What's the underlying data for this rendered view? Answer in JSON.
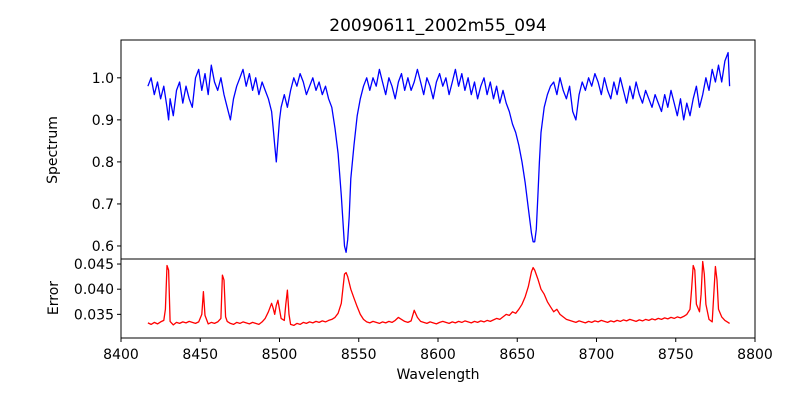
{
  "figure": {
    "title": "20090611_2002m55_094",
    "background_color": "#ffffff",
    "text_color": "#000000",
    "spine_color": "#000000"
  },
  "axes": {
    "xlabel": "Wavelength",
    "xlim": [
      8400,
      8800
    ],
    "xticks": [
      8400,
      8450,
      8500,
      8550,
      8600,
      8650,
      8700,
      8750,
      8800
    ],
    "xtick_labels": [
      "8400",
      "8450",
      "8500",
      "8550",
      "8600",
      "8650",
      "8700",
      "8750",
      "8800"
    ]
  },
  "chart_data": [
    {
      "type": "line",
      "name": "spectrum",
      "ylabel": "Spectrum",
      "line_color": "#0000ff",
      "legend": "none",
      "grid": false,
      "ylim": [
        0.569,
        1.09
      ],
      "yticks": [
        0.6,
        0.7,
        0.8,
        0.9,
        1.0
      ],
      "ytick_labels": [
        "0.6",
        "0.7",
        "0.8",
        "0.9",
        "1.0"
      ],
      "x": [
        8417,
        8419,
        8421,
        8423,
        8425,
        8427,
        8429,
        8430,
        8431,
        8433,
        8435,
        8437,
        8439,
        8441,
        8443,
        8445,
        8447,
        8449,
        8451,
        8453,
        8455,
        8457,
        8459,
        8461,
        8463,
        8465,
        8467,
        8469,
        8471,
        8473,
        8475,
        8477,
        8479,
        8481,
        8483,
        8485,
        8487,
        8489,
        8491,
        8493,
        8495,
        8496,
        8497,
        8498,
        8499,
        8500,
        8501,
        8503,
        8505,
        8507,
        8509,
        8511,
        8513,
        8515,
        8517,
        8519,
        8521,
        8523,
        8525,
        8527,
        8529,
        8531,
        8533,
        8535,
        8537,
        8539,
        8540,
        8541,
        8542,
        8543,
        8544,
        8545,
        8547,
        8549,
        8551,
        8553,
        8555,
        8557,
        8559,
        8561,
        8563,
        8565,
        8567,
        8569,
        8571,
        8573,
        8575,
        8577,
        8579,
        8581,
        8583,
        8585,
        8587,
        8589,
        8591,
        8593,
        8595,
        8597,
        8599,
        8601,
        8603,
        8605,
        8607,
        8609,
        8611,
        8613,
        8615,
        8617,
        8619,
        8621,
        8623,
        8625,
        8627,
        8629,
        8631,
        8633,
        8635,
        8637,
        8639,
        8641,
        8643,
        8645,
        8647,
        8649,
        8651,
        8653,
        8655,
        8657,
        8659,
        8660,
        8661,
        8662,
        8663,
        8664,
        8665,
        8667,
        8669,
        8671,
        8673,
        8675,
        8677,
        8679,
        8681,
        8683,
        8685,
        8687,
        8689,
        8691,
        8693,
        8695,
        8697,
        8699,
        8701,
        8703,
        8705,
        8707,
        8709,
        8711,
        8713,
        8715,
        8717,
        8719,
        8721,
        8723,
        8725,
        8727,
        8729,
        8731,
        8733,
        8735,
        8737,
        8739,
        8741,
        8743,
        8745,
        8747,
        8749,
        8751,
        8753,
        8755,
        8757,
        8759,
        8761,
        8763,
        8765,
        8767,
        8769,
        8771,
        8773,
        8775,
        8777,
        8779,
        8781,
        8783,
        8784
      ],
      "y": [
        0.98,
        1.0,
        0.96,
        0.99,
        0.95,
        0.98,
        0.93,
        0.9,
        0.95,
        0.91,
        0.97,
        0.99,
        0.94,
        0.98,
        0.95,
        0.93,
        1.0,
        1.02,
        0.97,
        1.01,
        0.96,
        1.03,
        0.99,
        0.97,
        1.0,
        0.96,
        0.93,
        0.9,
        0.95,
        0.98,
        1.0,
        1.02,
        0.98,
        1.01,
        0.97,
        1.0,
        0.96,
        0.99,
        0.97,
        0.95,
        0.92,
        0.88,
        0.84,
        0.8,
        0.85,
        0.9,
        0.93,
        0.96,
        0.93,
        0.97,
        1.0,
        0.98,
        1.01,
        0.99,
        0.96,
        0.98,
        1.0,
        0.97,
        0.99,
        0.96,
        0.98,
        0.95,
        0.93,
        0.88,
        0.82,
        0.72,
        0.66,
        0.6,
        0.585,
        0.615,
        0.67,
        0.76,
        0.84,
        0.91,
        0.95,
        0.98,
        1.0,
        0.97,
        1.0,
        0.98,
        1.02,
        0.99,
        0.96,
        1.0,
        0.98,
        0.95,
        0.99,
        1.01,
        0.97,
        1.0,
        0.97,
        0.99,
        1.02,
        0.99,
        0.96,
        1.0,
        0.98,
        0.95,
        0.99,
        1.01,
        0.98,
        1.0,
        0.96,
        0.99,
        1.02,
        0.98,
        1.01,
        0.97,
        1.0,
        0.96,
        0.99,
        0.95,
        0.98,
        1.0,
        0.96,
        0.99,
        0.95,
        0.98,
        0.94,
        0.97,
        0.94,
        0.92,
        0.89,
        0.87,
        0.84,
        0.8,
        0.75,
        0.69,
        0.63,
        0.61,
        0.61,
        0.64,
        0.72,
        0.8,
        0.87,
        0.93,
        0.96,
        0.98,
        0.99,
        0.96,
        1.0,
        0.97,
        0.95,
        0.98,
        0.92,
        0.9,
        0.96,
        0.99,
        0.97,
        1.0,
        0.98,
        1.01,
        0.99,
        0.96,
        1.0,
        0.97,
        0.95,
        0.99,
        0.96,
        1.0,
        0.97,
        0.94,
        0.98,
        0.95,
        0.99,
        0.96,
        0.94,
        0.97,
        0.95,
        0.93,
        0.96,
        0.94,
        0.92,
        0.96,
        0.93,
        0.97,
        0.94,
        0.91,
        0.95,
        0.9,
        0.94,
        0.91,
        0.95,
        0.98,
        0.93,
        0.96,
        1.0,
        0.97,
        1.02,
        0.99,
        1.03,
        0.99,
        1.04,
        1.06,
        0.98
      ]
    },
    {
      "type": "line",
      "name": "error",
      "ylabel": "Error",
      "line_color": "#ff0000",
      "legend": "none",
      "grid": false,
      "ylim": [
        0.0303,
        0.046
      ],
      "yticks": [
        0.035,
        0.04,
        0.045
      ],
      "ytick_labels": [
        "0.035",
        "0.040",
        "0.045"
      ],
      "x": [
        8417,
        8419,
        8421,
        8423,
        8425,
        8427,
        8428,
        8429,
        8430,
        8431,
        8433,
        8435,
        8437,
        8439,
        8441,
        8443,
        8445,
        8447,
        8449,
        8451,
        8452,
        8453,
        8455,
        8457,
        8459,
        8461,
        8463,
        8464,
        8465,
        8466,
        8467,
        8469,
        8471,
        8473,
        8475,
        8477,
        8479,
        8481,
        8483,
        8485,
        8487,
        8489,
        8491,
        8493,
        8495,
        8496,
        8497,
        8498,
        8499,
        8501,
        8503,
        8504,
        8505,
        8506,
        8507,
        8509,
        8511,
        8513,
        8515,
        8517,
        8519,
        8521,
        8523,
        8525,
        8527,
        8529,
        8531,
        8533,
        8535,
        8537,
        8539,
        8541,
        8542,
        8543,
        8545,
        8547,
        8549,
        8551,
        8553,
        8555,
        8557,
        8559,
        8561,
        8563,
        8565,
        8567,
        8569,
        8571,
        8573,
        8575,
        8577,
        8579,
        8581,
        8583,
        8585,
        8587,
        8589,
        8591,
        8593,
        8595,
        8597,
        8599,
        8601,
        8603,
        8605,
        8607,
        8609,
        8611,
        8613,
        8615,
        8617,
        8619,
        8621,
        8623,
        8625,
        8627,
        8629,
        8631,
        8633,
        8635,
        8637,
        8639,
        8641,
        8643,
        8645,
        8647,
        8649,
        8651,
        8653,
        8655,
        8657,
        8659,
        8660,
        8661,
        8663,
        8665,
        8667,
        8669,
        8671,
        8673,
        8675,
        8677,
        8679,
        8681,
        8683,
        8685,
        8687,
        8689,
        8691,
        8693,
        8695,
        8697,
        8699,
        8701,
        8703,
        8705,
        8707,
        8709,
        8711,
        8713,
        8715,
        8717,
        8719,
        8721,
        8723,
        8725,
        8727,
        8729,
        8731,
        8733,
        8735,
        8737,
        8739,
        8741,
        8743,
        8745,
        8747,
        8749,
        8751,
        8753,
        8755,
        8757,
        8759,
        8760,
        8761,
        8762,
        8763,
        8765,
        8766,
        8767,
        8768,
        8769,
        8771,
        8773,
        8774,
        8775,
        8776,
        8777,
        8779,
        8781,
        8783,
        8784
      ],
      "y": [
        0.0333,
        0.033,
        0.0334,
        0.0331,
        0.0335,
        0.0338,
        0.036,
        0.0447,
        0.0438,
        0.0336,
        0.0329,
        0.0334,
        0.0332,
        0.0335,
        0.0333,
        0.0336,
        0.0334,
        0.0332,
        0.0335,
        0.035,
        0.0395,
        0.0348,
        0.0331,
        0.0334,
        0.0332,
        0.0335,
        0.0342,
        0.0428,
        0.0418,
        0.0345,
        0.0336,
        0.0332,
        0.033,
        0.0334,
        0.0332,
        0.0335,
        0.0333,
        0.0331,
        0.0334,
        0.0332,
        0.033,
        0.0335,
        0.0342,
        0.0355,
        0.0372,
        0.0362,
        0.035,
        0.0368,
        0.0378,
        0.0342,
        0.0338,
        0.037,
        0.0398,
        0.035,
        0.033,
        0.0328,
        0.0332,
        0.033,
        0.0334,
        0.0332,
        0.0335,
        0.0333,
        0.0336,
        0.0334,
        0.0337,
        0.0335,
        0.0338,
        0.034,
        0.0344,
        0.0352,
        0.0372,
        0.043,
        0.0433,
        0.0425,
        0.04,
        0.0382,
        0.0365,
        0.035,
        0.034,
        0.0335,
        0.0333,
        0.0336,
        0.0334,
        0.0332,
        0.0335,
        0.0333,
        0.0336,
        0.0334,
        0.0338,
        0.0344,
        0.034,
        0.0336,
        0.0334,
        0.0337,
        0.0358,
        0.0344,
        0.0336,
        0.0334,
        0.0332,
        0.0335,
        0.0333,
        0.0331,
        0.0334,
        0.0336,
        0.0334,
        0.0332,
        0.0335,
        0.0333,
        0.0336,
        0.0334,
        0.0337,
        0.0335,
        0.0333,
        0.0336,
        0.0334,
        0.0337,
        0.0335,
        0.0338,
        0.0336,
        0.0339,
        0.0342,
        0.034,
        0.0345,
        0.035,
        0.0348,
        0.0355,
        0.0352,
        0.036,
        0.037,
        0.0385,
        0.0405,
        0.0435,
        0.0443,
        0.0438,
        0.042,
        0.04,
        0.039,
        0.0375,
        0.0365,
        0.0355,
        0.036,
        0.035,
        0.0345,
        0.034,
        0.0338,
        0.0336,
        0.0334,
        0.0337,
        0.0335,
        0.0333,
        0.0336,
        0.0334,
        0.0337,
        0.0335,
        0.0338,
        0.0336,
        0.0334,
        0.0337,
        0.0335,
        0.0338,
        0.0336,
        0.0339,
        0.0337,
        0.034,
        0.0338,
        0.0336,
        0.0339,
        0.0337,
        0.034,
        0.0338,
        0.0341,
        0.0339,
        0.0342,
        0.034,
        0.0343,
        0.0341,
        0.0344,
        0.0342,
        0.0345,
        0.0343,
        0.0346,
        0.035,
        0.036,
        0.04,
        0.0447,
        0.0438,
        0.037,
        0.0355,
        0.039,
        0.0455,
        0.043,
        0.037,
        0.034,
        0.0335,
        0.039,
        0.0445,
        0.0418,
        0.036,
        0.0345,
        0.0338,
        0.0334,
        0.0332
      ]
    }
  ]
}
